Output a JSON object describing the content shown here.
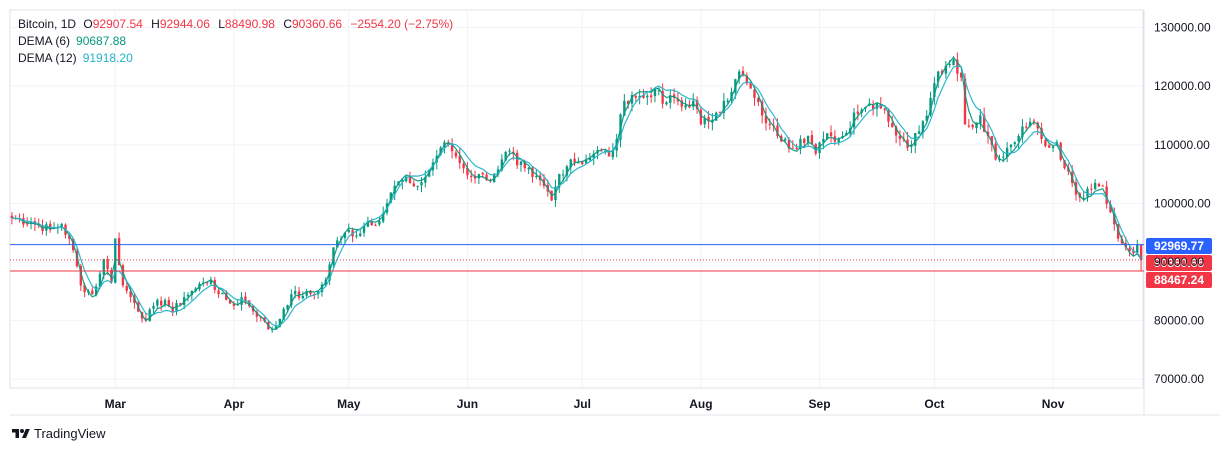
{
  "header": {
    "symbol": "Bitcoin",
    "interval": "1D",
    "o_label": "O",
    "o_value": "92907.54",
    "h_label": "H",
    "h_value": "92944.06",
    "l_label": "L",
    "l_value": "88490.98",
    "c_label": "C",
    "c_value": "90360.66",
    "change": "−2554.20 (−2.75%)"
  },
  "indicators": [
    {
      "name": "DEMA (6)",
      "value": "90687.88",
      "color": "#089981"
    },
    {
      "name": "DEMA (12)",
      "value": "91918.20",
      "color": "#22b3c8"
    }
  ],
  "footer": {
    "brand": "TradingView",
    "logo_icon": "tradingview-logo-icon"
  },
  "colors": {
    "up": "#089981",
    "down": "#f23645",
    "blue_line": "#2962ff",
    "grid": "#f0f3fa"
  },
  "chart_data": {
    "type": "candlestick",
    "symbol": "Bitcoin",
    "interval": "1D",
    "ylim": [
      68500,
      133000
    ],
    "y_ticks": [
      70000,
      80000,
      90000,
      100000,
      110000,
      120000,
      130000
    ],
    "y_tick_labels": [
      "70000.00",
      "80000.00",
      "90000.00",
      "100000.00",
      "110000.00",
      "120000.00",
      "130000.00"
    ],
    "x_months": [
      {
        "label": "Mar",
        "day": 27
      },
      {
        "label": "Apr",
        "day": 58
      },
      {
        "label": "May",
        "day": 88
      },
      {
        "label": "Jun",
        "day": 119
      },
      {
        "label": "Jul",
        "day": 149
      },
      {
        "label": "Aug",
        "day": 180
      },
      {
        "label": "Sep",
        "day": 211
      },
      {
        "label": "Oct",
        "day": 241
      },
      {
        "label": "Nov",
        "day": 272
      }
    ],
    "day_count": 296,
    "close_anchors": [
      [
        0,
        97500
      ],
      [
        5,
        96800
      ],
      [
        10,
        95500
      ],
      [
        13,
        96500
      ],
      [
        16,
        92000
      ],
      [
        18,
        86000
      ],
      [
        21,
        84500
      ],
      [
        23,
        88000
      ],
      [
        24,
        90500
      ],
      [
        26,
        86500
      ],
      [
        27,
        94000
      ],
      [
        29,
        86000
      ],
      [
        31,
        84000
      ],
      [
        35,
        80000
      ],
      [
        37,
        82500
      ],
      [
        40,
        83500
      ],
      [
        42,
        81500
      ],
      [
        45,
        84000
      ],
      [
        48,
        85500
      ],
      [
        50,
        86500
      ],
      [
        52,
        87000
      ],
      [
        54,
        84500
      ],
      [
        56,
        83500
      ],
      [
        58,
        82500
      ],
      [
        60,
        84000
      ],
      [
        62,
        82500
      ],
      [
        65,
        80500
      ],
      [
        67,
        78500
      ],
      [
        69,
        79000
      ],
      [
        71,
        82000
      ],
      [
        73,
        84500
      ],
      [
        76,
        84200
      ],
      [
        80,
        85000
      ],
      [
        82,
        87000
      ],
      [
        84,
        92500
      ],
      [
        86,
        94000
      ],
      [
        88,
        95500
      ],
      [
        90,
        94500
      ],
      [
        93,
        97000
      ],
      [
        96,
        97000
      ],
      [
        98,
        100000
      ],
      [
        100,
        103000
      ],
      [
        102,
        104000
      ],
      [
        104,
        103500
      ],
      [
        106,
        103000
      ],
      [
        108,
        104500
      ],
      [
        110,
        107000
      ],
      [
        112,
        109500
      ],
      [
        114,
        110000
      ],
      [
        116,
        108000
      ],
      [
        118,
        106000
      ],
      [
        120,
        104500
      ],
      [
        122,
        105000
      ],
      [
        124,
        104000
      ],
      [
        126,
        105000
      ],
      [
        128,
        107500
      ],
      [
        130,
        109000
      ],
      [
        132,
        106500
      ],
      [
        134,
        106000
      ],
      [
        136,
        104500
      ],
      [
        139,
        103000
      ],
      [
        141,
        100500
      ],
      [
        143,
        105000
      ],
      [
        146,
        107500
      ],
      [
        148,
        107000
      ],
      [
        150,
        107500
      ],
      [
        152,
        108500
      ],
      [
        154,
        109000
      ],
      [
        156,
        108000
      ],
      [
        158,
        111000
      ],
      [
        160,
        117500
      ],
      [
        162,
        118500
      ],
      [
        165,
        118000
      ],
      [
        168,
        119500
      ],
      [
        170,
        117000
      ],
      [
        173,
        118000
      ],
      [
        175,
        116500
      ],
      [
        178,
        117500
      ],
      [
        180,
        113500
      ],
      [
        182,
        114000
      ],
      [
        184,
        115500
      ],
      [
        186,
        117500
      ],
      [
        188,
        119000
      ],
      [
        190,
        122500
      ],
      [
        192,
        120500
      ],
      [
        194,
        118000
      ],
      [
        196,
        115000
      ],
      [
        198,
        113500
      ],
      [
        200,
        111500
      ],
      [
        202,
        111000
      ],
      [
        204,
        109500
      ],
      [
        206,
        111000
      ],
      [
        208,
        111500
      ],
      [
        210,
        108500
      ],
      [
        212,
        111000
      ],
      [
        214,
        111500
      ],
      [
        216,
        111000
      ],
      [
        218,
        112000
      ],
      [
        220,
        115500
      ],
      [
        222,
        116000
      ],
      [
        224,
        117000
      ],
      [
        226,
        117000
      ],
      [
        228,
        116000
      ],
      [
        230,
        113000
      ],
      [
        232,
        111000
      ],
      [
        234,
        109500
      ],
      [
        236,
        112000
      ],
      [
        238,
        114000
      ],
      [
        240,
        118000
      ],
      [
        242,
        122500
      ],
      [
        244,
        123500
      ],
      [
        246,
        124500
      ],
      [
        248,
        121500
      ],
      [
        249,
        113500
      ],
      [
        251,
        113000
      ],
      [
        253,
        115000
      ],
      [
        255,
        111500
      ],
      [
        257,
        107500
      ],
      [
        259,
        108000
      ],
      [
        261,
        110000
      ],
      [
        263,
        111500
      ],
      [
        265,
        113000
      ],
      [
        267,
        114000
      ],
      [
        269,
        111000
      ],
      [
        271,
        109500
      ],
      [
        273,
        110500
      ],
      [
        275,
        106000
      ],
      [
        277,
        103500
      ],
      [
        279,
        101000
      ],
      [
        281,
        102500
      ],
      [
        283,
        103500
      ],
      [
        285,
        103000
      ],
      [
        287,
        98500
      ],
      [
        289,
        94000
      ],
      [
        291,
        92500
      ],
      [
        293,
        91500
      ],
      [
        294,
        92907.54
      ],
      [
        295,
        90360.66
      ]
    ],
    "price_lines": [
      {
        "label": "92969.77",
        "value": 92969.77,
        "color": "#2962ff",
        "style": "solid"
      },
      {
        "label": "90360.66",
        "value": 90360.66,
        "color": "#f23645",
        "style": "dotted"
      },
      {
        "label": "88467.24",
        "value": 88467.24,
        "color": "#f23645",
        "style": "solid"
      }
    ],
    "series": [
      {
        "name": "DEMA (6)",
        "color": "#089981",
        "period": 6
      },
      {
        "name": "DEMA (12)",
        "color": "#22b3c8",
        "period": 12
      }
    ],
    "last_bar": {
      "open": 92907.54,
      "high": 92944.06,
      "low": 88490.98,
      "close": 90360.66
    }
  }
}
